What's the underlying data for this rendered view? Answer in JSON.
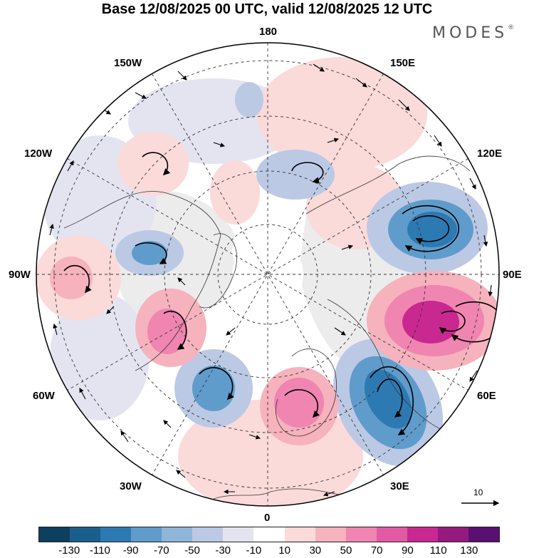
{
  "title": "Base 12/08/2025 00 UTC, valid 12/08/2025 12 UTC",
  "brand": "MODES",
  "brand_mark": "®",
  "longitude_labels": {
    "top": "180",
    "top_left": "150W",
    "top_right": "150E",
    "upper_left": "120W",
    "upper_right": "120E",
    "left": "90W",
    "right": "90E",
    "lower_left": "60W",
    "lower_right": "60E",
    "bottom_left": "30W",
    "bottom_right": "30E",
    "bottom": "0"
  },
  "reference_vector": {
    "label": "10"
  },
  "colorbar": {
    "colors": [
      "#0d3f5e",
      "#1a5f8c",
      "#2d7ab2",
      "#5f9ccb",
      "#8fb5d9",
      "#bcc9e4",
      "#e4e4f1",
      "#ffffff",
      "#fbdada",
      "#f6b2bd",
      "#ef85b0",
      "#e35aa4",
      "#c92890",
      "#941a80",
      "#5a1073"
    ],
    "ticks": [
      "-130",
      "-110",
      "-90",
      "-70",
      "-50",
      "-30",
      "-10",
      "10",
      "30",
      "50",
      "70",
      "90",
      "110",
      "130"
    ]
  },
  "anomaly_colors": {
    "neg_strong": "#2d7ab2",
    "neg_mid": "#5f9ccb",
    "neg_weak": "#bcc9e4",
    "neg_faint": "#e4e4f1",
    "pos_faint": "#fbdada",
    "pos_weak": "#f6b2bd",
    "pos_mid": "#ef85b0",
    "pos_strong": "#c92890",
    "land_neutral": "#ececec"
  }
}
